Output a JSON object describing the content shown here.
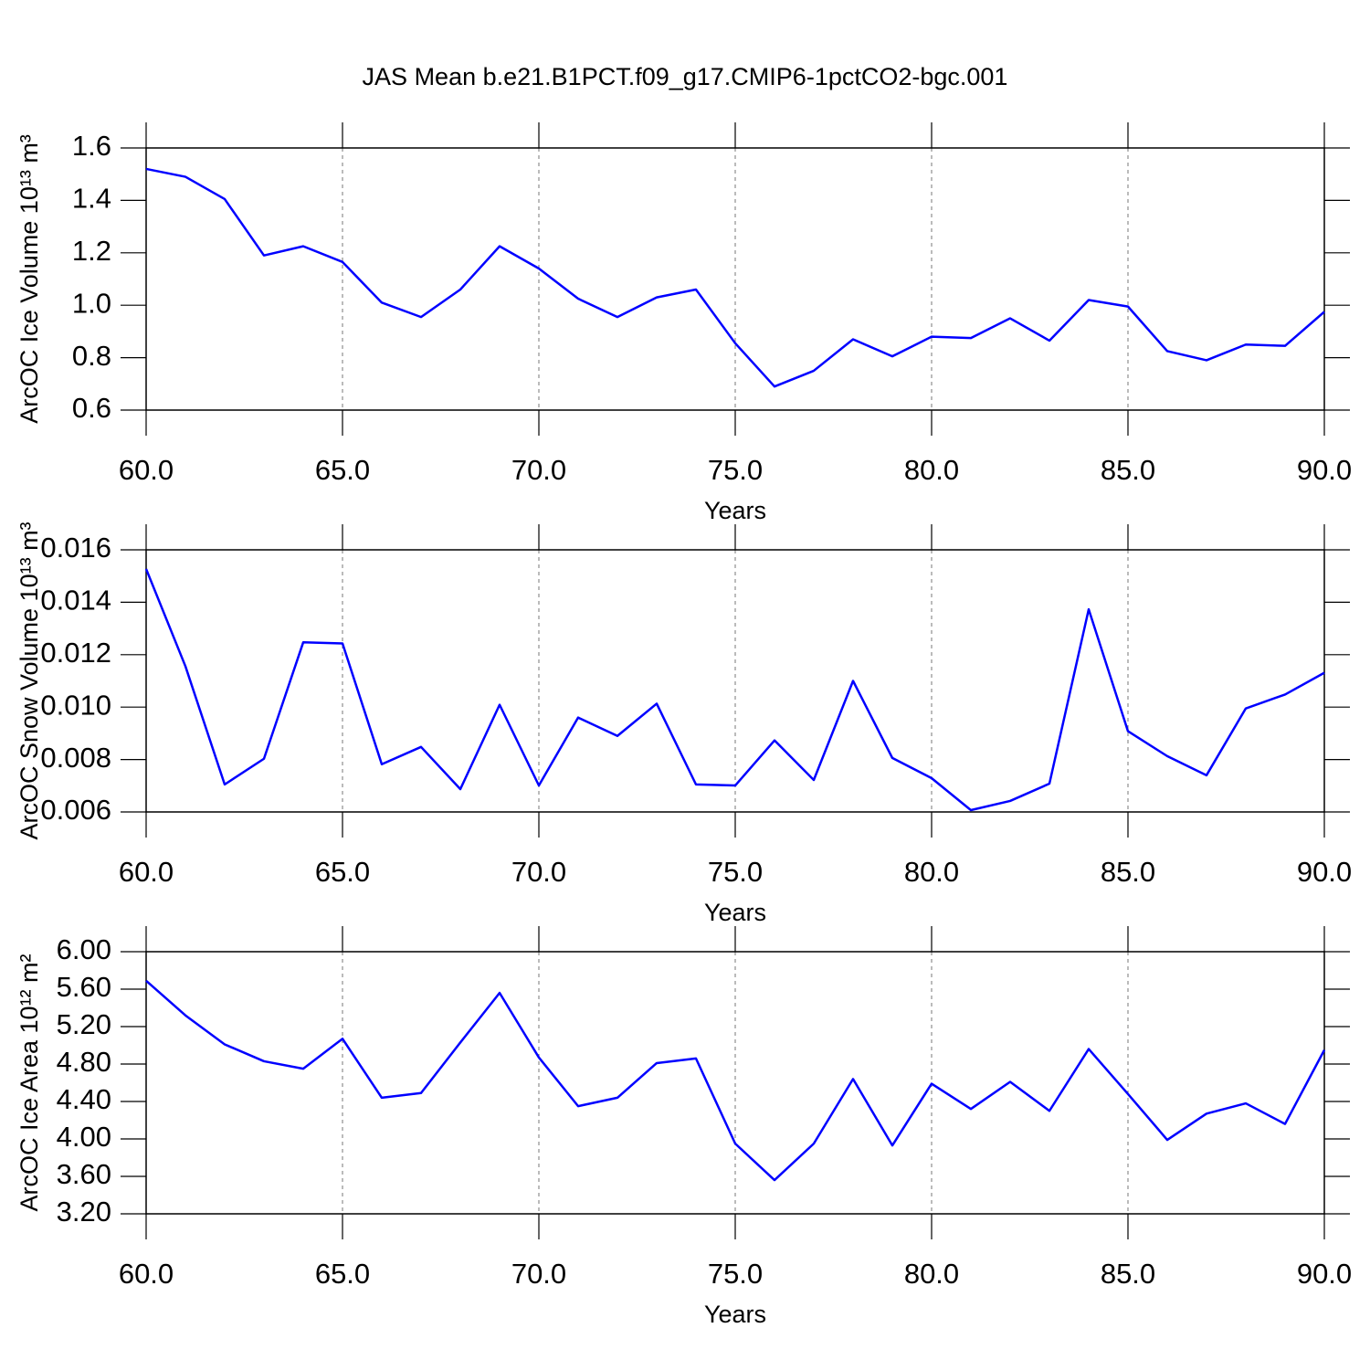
{
  "title": "JAS Mean b.e21.B1PCT.f09_g17.CMIP6-1pctCO2-bgc.001",
  "chart_data": [
    {
      "type": "line",
      "ylabel": "ArcOC Ice Volume 10¹³ m³",
      "xlabel": "Years",
      "x": [
        60,
        61,
        62,
        63,
        64,
        65,
        66,
        67,
        68,
        69,
        70,
        71,
        72,
        73,
        74,
        75,
        76,
        77,
        78,
        79,
        80,
        81,
        82,
        83,
        84,
        85,
        86,
        87,
        88,
        89,
        90
      ],
      "series": [
        {
          "color": "#0000ff",
          "values": [
            1.52,
            1.49,
            1.405,
            1.19,
            1.225,
            1.165,
            1.01,
            0.955,
            1.06,
            1.225,
            1.14,
            1.025,
            0.955,
            1.03,
            1.06,
            0.855,
            0.69,
            0.75,
            0.87,
            0.805,
            0.88,
            0.875,
            0.95,
            0.865,
            1.02,
            0.995,
            0.825,
            0.79,
            0.85,
            0.845,
            0.975
          ]
        }
      ],
      "xlim": [
        60,
        90
      ],
      "xticks": [
        {
          "value": 60,
          "label": "60.0"
        },
        {
          "value": 65,
          "label": "65.0"
        },
        {
          "value": 70,
          "label": "70.0"
        },
        {
          "value": 75,
          "label": "75.0"
        },
        {
          "value": 80,
          "label": "80.0"
        },
        {
          "value": 85,
          "label": "85.0"
        },
        {
          "value": 90,
          "label": "90.0"
        }
      ],
      "ylim": [
        0.6,
        1.6
      ],
      "yticks": [
        0.6,
        0.8,
        {
          "value": 1,
          "label": "1.0"
        },
        1.2,
        1.4,
        1.6
      ],
      "xgrid": true
    },
    {
      "type": "line",
      "ylabel": "ArcOC Snow Volume 10¹³ m³",
      "xlabel": "Years",
      "x": [
        60,
        61,
        62,
        63,
        64,
        65,
        66,
        67,
        68,
        69,
        70,
        71,
        72,
        73,
        74,
        75,
        76,
        77,
        78,
        79,
        80,
        81,
        82,
        83,
        84,
        85,
        86,
        87,
        88,
        89,
        90
      ],
      "series": [
        {
          "color": "#0000ff",
          "values": [
            0.01527,
            0.01156,
            0.00705,
            0.00803,
            0.01247,
            0.01243,
            0.00782,
            0.00848,
            0.00687,
            0.01009,
            0.00701,
            0.0096,
            0.0089,
            0.01013,
            0.00705,
            0.00701,
            0.00873,
            0.00722,
            0.011,
            0.00806,
            0.00729,
            0.00607,
            0.00642,
            0.00708,
            0.01373,
            0.00908,
            0.00813,
            0.0074,
            0.00995,
            0.01048,
            0.01131
          ]
        }
      ],
      "xlim": [
        60,
        90
      ],
      "xticks": [
        {
          "value": 60,
          "label": "60.0"
        },
        {
          "value": 65,
          "label": "65.0"
        },
        {
          "value": 70,
          "label": "70.0"
        },
        {
          "value": 75,
          "label": "75.0"
        },
        {
          "value": 80,
          "label": "80.0"
        },
        {
          "value": 85,
          "label": "85.0"
        },
        {
          "value": 90,
          "label": "90.0"
        }
      ],
      "ylim": [
        0.006,
        0.016
      ],
      "yticks": [
        0.006,
        0.008,
        {
          "value": 0.01,
          "label": "0.010"
        },
        0.012,
        0.014,
        0.016
      ],
      "xgrid": true
    },
    {
      "type": "line",
      "ylabel": "ArcOC Ice Area 10¹² m²",
      "xlabel": "Years",
      "x": [
        60,
        61,
        62,
        63,
        64,
        65,
        66,
        67,
        68,
        69,
        70,
        71,
        72,
        73,
        74,
        75,
        76,
        77,
        78,
        79,
        80,
        81,
        82,
        83,
        84,
        85,
        86,
        87,
        88,
        89,
        90
      ],
      "series": [
        {
          "color": "#0000ff",
          "values": [
            5.69,
            5.32,
            5.01,
            4.83,
            4.75,
            5.07,
            4.44,
            4.49,
            5.03,
            5.56,
            4.87,
            4.35,
            4.44,
            4.81,
            4.86,
            3.95,
            3.56,
            3.95,
            4.64,
            3.93,
            4.59,
            4.32,
            4.61,
            4.3,
            4.96,
            4.48,
            3.99,
            4.27,
            4.38,
            4.16,
            4.95
          ]
        }
      ],
      "xlim": [
        60,
        90
      ],
      "xticks": [
        {
          "value": 60,
          "label": "60.0"
        },
        {
          "value": 65,
          "label": "65.0"
        },
        {
          "value": 70,
          "label": "70.0"
        },
        {
          "value": 75,
          "label": "75.0"
        },
        {
          "value": 80,
          "label": "80.0"
        },
        {
          "value": 85,
          "label": "85.0"
        },
        {
          "value": 90,
          "label": "90.0"
        }
      ],
      "ylim": [
        3.2,
        6
      ],
      "yticks": [
        {
          "value": 3.2,
          "label": "3.20"
        },
        {
          "value": 3.6,
          "label": "3.60"
        },
        {
          "value": 4,
          "label": "4.00"
        },
        {
          "value": 4.4,
          "label": "4.40"
        },
        {
          "value": 4.8,
          "label": "4.80"
        },
        {
          "value": 5.2,
          "label": "5.20"
        },
        {
          "value": 5.6,
          "label": "5.60"
        },
        {
          "value": 6,
          "label": "6.00"
        }
      ],
      "xgrid": true
    }
  ]
}
